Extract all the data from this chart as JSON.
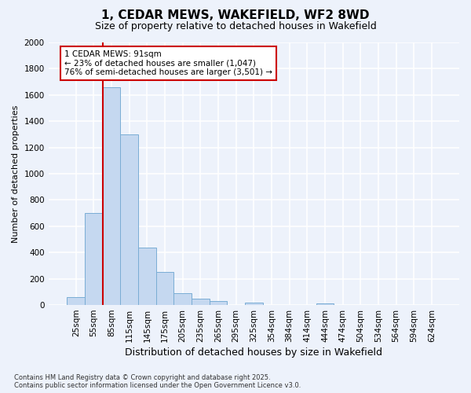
{
  "title1": "1, CEDAR MEWS, WAKEFIELD, WF2 8WD",
  "title2": "Size of property relative to detached houses in Wakefield",
  "xlabel": "Distribution of detached houses by size in Wakefield",
  "ylabel": "Number of detached properties",
  "categories": [
    "25sqm",
    "55sqm",
    "85sqm",
    "115sqm",
    "145sqm",
    "175sqm",
    "205sqm",
    "235sqm",
    "265sqm",
    "295sqm",
    "325sqm",
    "354sqm",
    "384sqm",
    "414sqm",
    "444sqm",
    "474sqm",
    "504sqm",
    "534sqm",
    "564sqm",
    "594sqm",
    "624sqm"
  ],
  "values": [
    60,
    700,
    1660,
    1300,
    440,
    250,
    90,
    50,
    30,
    0,
    20,
    0,
    0,
    0,
    10,
    0,
    0,
    0,
    0,
    0,
    0
  ],
  "bar_color": "#c5d8f0",
  "bar_edge_color": "#7aadd4",
  "vline_color": "#cc0000",
  "vline_index": 2,
  "annotation_text": "1 CEDAR MEWS: 91sqm\n← 23% of detached houses are smaller (1,047)\n76% of semi-detached houses are larger (3,501) →",
  "annotation_box_facecolor": "#ffffff",
  "annotation_box_edgecolor": "#cc0000",
  "ylim": [
    0,
    2000
  ],
  "yticks": [
    0,
    200,
    400,
    600,
    800,
    1000,
    1200,
    1400,
    1600,
    1800,
    2000
  ],
  "background_color": "#edf2fb",
  "grid_color": "#ffffff",
  "title1_fontsize": 11,
  "title2_fontsize": 9,
  "ylabel_fontsize": 8,
  "xlabel_fontsize": 9,
  "tick_fontsize": 7.5,
  "footer1": "Contains HM Land Registry data © Crown copyright and database right 2025.",
  "footer2": "Contains public sector information licensed under the Open Government Licence v3.0."
}
